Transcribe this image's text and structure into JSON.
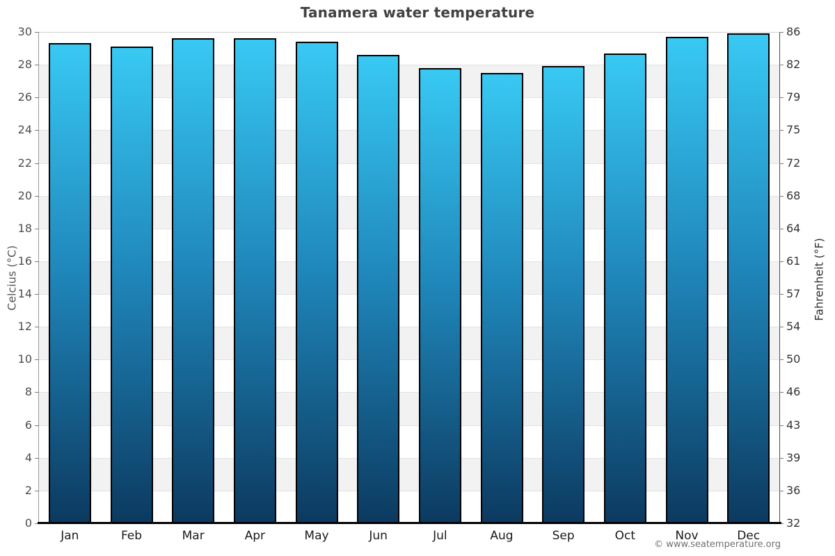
{
  "title": "Tanamera water temperature",
  "footer": {
    "copyright": "© www.seatemperature.org"
  },
  "chart_data": {
    "type": "bar",
    "title": "Tanamera water temperature",
    "categories": [
      "Jan",
      "Feb",
      "Mar",
      "Apr",
      "May",
      "Jun",
      "Jul",
      "Aug",
      "Sep",
      "Oct",
      "Nov",
      "Dec"
    ],
    "series": [
      {
        "name": "Water temperature",
        "unit": "°C",
        "values": [
          29.3,
          29.1,
          29.6,
          29.6,
          29.4,
          28.6,
          27.8,
          27.5,
          27.9,
          28.7,
          29.7,
          29.9
        ]
      }
    ],
    "ylabel_left": "Celcius (°C)",
    "ylabel_right": "Fahrenheit (°F)",
    "ylim": [
      0,
      30
    ],
    "y_left_ticks": [
      30,
      28,
      26,
      24,
      22,
      20,
      18,
      16,
      14,
      12,
      10,
      8,
      6,
      4,
      2,
      0
    ],
    "y_right_ticks": [
      86,
      82,
      79,
      75,
      72,
      68,
      64,
      61,
      57,
      54,
      50,
      46,
      43,
      39,
      36,
      32
    ],
    "xlabel": "",
    "legend": "none",
    "grid": "alternating horizontal 2-degree bands",
    "colors": {
      "bar_gradient_top": "#38c9f3",
      "bar_gradient_mid": "#1f86ba",
      "bar_gradient_bottom": "#0c3a60",
      "bar_border": "#000000",
      "band_white": "#ffffff",
      "band_gray": "#f2f2f2",
      "title_text": "#414141",
      "tick_text": "#4d4d4d",
      "month_text": "#191919",
      "bottom_axis": "#000000"
    }
  }
}
